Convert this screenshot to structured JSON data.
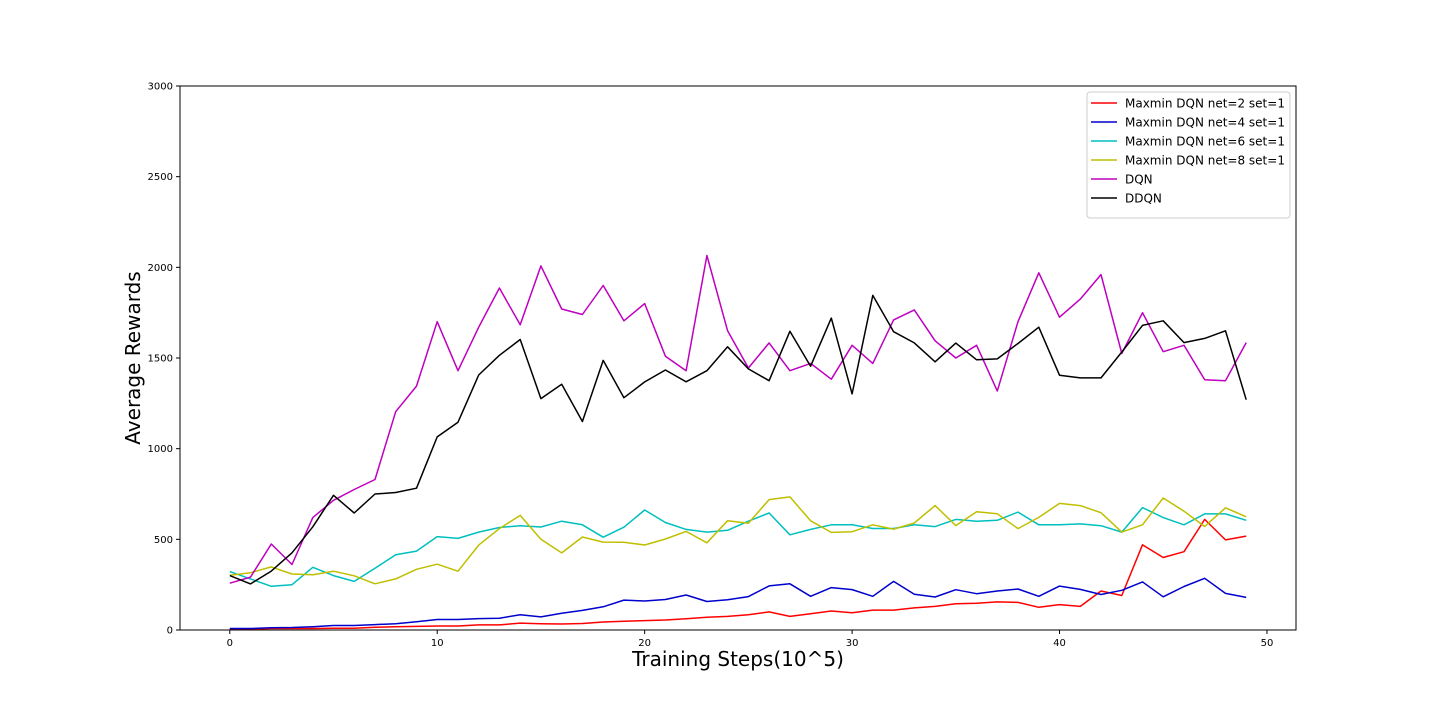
{
  "chart_data": {
    "type": "line",
    "title": "",
    "xlabel": "Training Steps(10^5)",
    "ylabel": "Average Rewards",
    "xlim": [
      -2.4,
      51.4
    ],
    "ylim": [
      0,
      3000
    ],
    "xticks": [
      0,
      10,
      20,
      30,
      40,
      50
    ],
    "yticks": [
      0,
      500,
      1000,
      1500,
      2000,
      2500,
      3000
    ],
    "grid": false,
    "legend_position": "top-right",
    "x": [
      0,
      1,
      2,
      3,
      4,
      5,
      6,
      7,
      8,
      9,
      10,
      11,
      12,
      13,
      14,
      15,
      16,
      17,
      18,
      19,
      20,
      21,
      22,
      23,
      24,
      25,
      26,
      27,
      28,
      29,
      30,
      31,
      32,
      33,
      34,
      35,
      36,
      37,
      38,
      39,
      40,
      41,
      42,
      43,
      44,
      45,
      46,
      47,
      48,
      49
    ],
    "series": [
      {
        "name": "Maxmin DQN net=2 set=1",
        "color": "#ff0000",
        "values": [
          5,
          5,
          8,
          8,
          8,
          10,
          10,
          15,
          18,
          20,
          22,
          22,
          28,
          28,
          38,
          35,
          33,
          36,
          44,
          48,
          52,
          55,
          62,
          70,
          75,
          84,
          100,
          75,
          90,
          105,
          95,
          110,
          110,
          122,
          130,
          145,
          148,
          155,
          152,
          125,
          140,
          130,
          215,
          190,
          470,
          400,
          432,
          610,
          497,
          518
        ]
      },
      {
        "name": "Maxmin DQN net=4 set=1",
        "color": "#0000cc",
        "values": [
          8,
          8,
          12,
          14,
          18,
          25,
          25,
          30,
          35,
          45,
          58,
          58,
          63,
          65,
          84,
          72,
          92,
          108,
          128,
          165,
          160,
          168,
          193,
          157,
          167,
          184,
          243,
          255,
          186,
          234,
          223,
          186,
          268,
          197,
          182,
          222,
          200,
          215,
          226,
          186,
          242,
          224,
          196,
          219,
          265,
          183,
          240,
          285,
          202,
          180
        ]
      },
      {
        "name": "Maxmin DQN net=6 set=1",
        "color": "#00bfbf",
        "values": [
          322,
          282,
          241,
          250,
          346,
          300,
          268,
          340,
          415,
          435,
          515,
          505,
          540,
          565,
          575,
          568,
          600,
          580,
          512,
          567,
          662,
          593,
          555,
          540,
          550,
          600,
          645,
          525,
          555,
          580,
          580,
          560,
          560,
          580,
          570,
          610,
          600,
          605,
          650,
          580,
          580,
          585,
          575,
          540,
          675,
          620,
          580,
          640,
          640,
          605
        ]
      },
      {
        "name": "Maxmin DQN net=8 set=1",
        "color": "#bfbf00",
        "values": [
          302,
          316,
          348,
          309,
          305,
          324,
          299,
          255,
          282,
          335,
          363,
          324,
          468,
          559,
          632,
          501,
          425,
          513,
          485,
          484,
          469,
          502,
          544,
          481,
          603,
          589,
          719,
          734,
          602,
          538,
          542,
          580,
          556,
          590,
          686,
          576,
          652,
          641,
          559,
          621,
          698,
          686,
          647,
          540,
          580,
          728,
          655,
          571,
          674,
          624
        ]
      },
      {
        "name": "DQN",
        "color": "#bf00bf",
        "values": [
          258,
          292,
          474,
          361,
          620,
          715,
          775,
          830,
          1204,
          1345,
          1700,
          1430,
          1670,
          1886,
          1683,
          2008,
          1770,
          1740,
          1900,
          1705,
          1800,
          1510,
          1430,
          2065,
          1650,
          1445,
          1583,
          1430,
          1470,
          1383,
          1570,
          1470,
          1710,
          1765,
          1595,
          1500,
          1570,
          1318,
          1700,
          1970,
          1725,
          1825,
          1960,
          1525,
          1750,
          1535,
          1570,
          1380,
          1375,
          1585
        ]
      },
      {
        "name": "DDQN",
        "color": "#000000",
        "values": [
          300,
          254,
          325,
          426,
          569,
          743,
          645,
          750,
          758,
          782,
          1065,
          1146,
          1406,
          1515,
          1602,
          1276,
          1355,
          1150,
          1487,
          1281,
          1368,
          1434,
          1369,
          1430,
          1562,
          1440,
          1375,
          1647,
          1455,
          1720,
          1302,
          1845,
          1645,
          1583,
          1479,
          1582,
          1490,
          1495,
          1580,
          1670,
          1405,
          1390,
          1390,
          1533,
          1680,
          1705,
          1585,
          1608,
          1650,
          1270
        ]
      }
    ]
  }
}
